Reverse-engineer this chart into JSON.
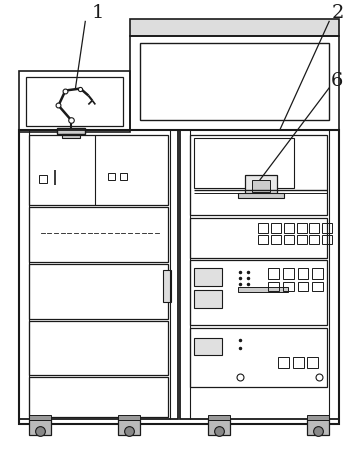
{
  "bg_color": "#ffffff",
  "line_color": "#1a1a1a",
  "figsize": [
    3.58,
    4.54
  ],
  "dpi": 100
}
